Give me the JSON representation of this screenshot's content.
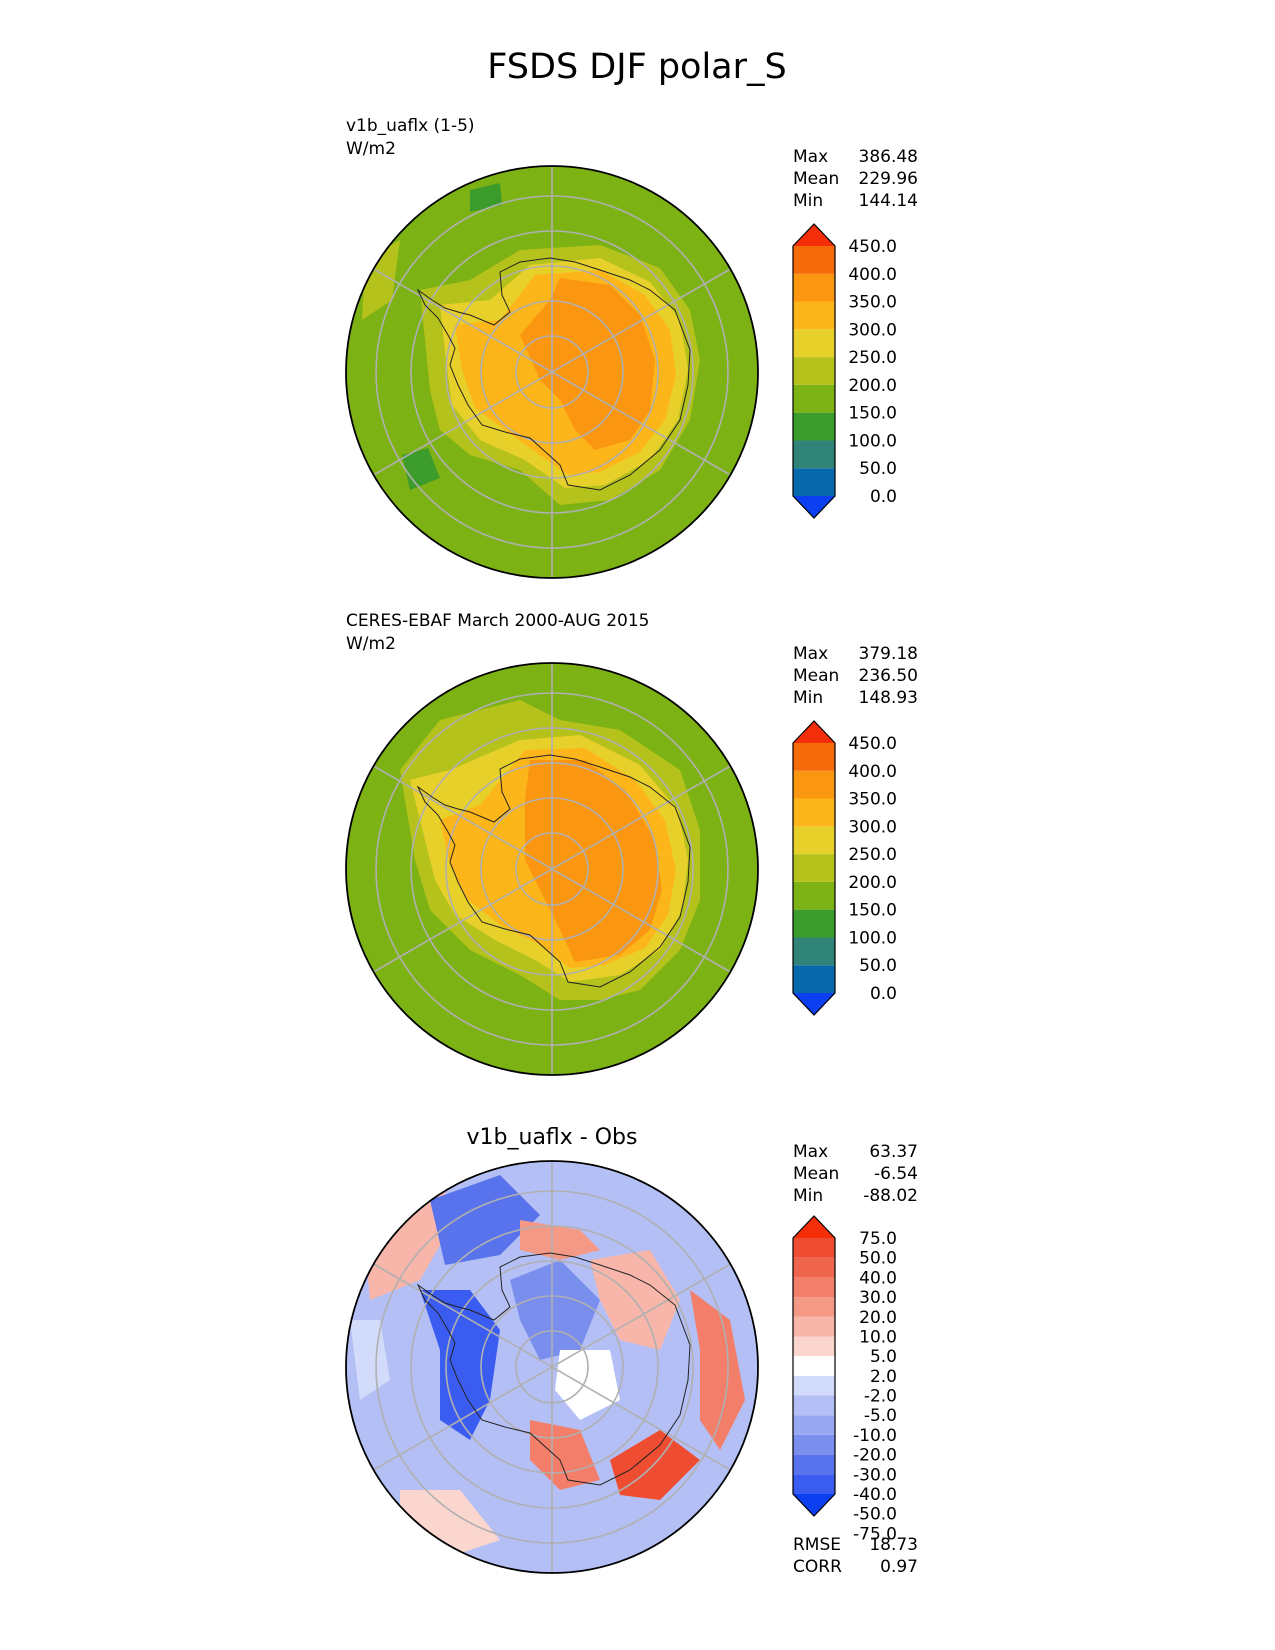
{
  "figure_title": "FSDS DJF polar_S",
  "palettes": {
    "abs": [
      "#0b3ff0",
      "#0868ac",
      "#2f8377",
      "#3c9c2b",
      "#7db214",
      "#b5c21b",
      "#e8d02b",
      "#fdb61a",
      "#fb9611",
      "#f56b0a",
      "#f52e0a"
    ],
    "diff": [
      "#0b3ff0",
      "#3b5cf0",
      "#5873ec",
      "#7a8eee",
      "#98a8f2",
      "#b4c0f5",
      "#d2dbfa",
      "#ffffff",
      "#fbd6cf",
      "#f8b6aa",
      "#f59987",
      "#f37e69",
      "#f0654d",
      "#ee4d32",
      "#f52e0a"
    ]
  },
  "panels": [
    {
      "title": "v1b_uaflx (1-5)",
      "units": "W/m2",
      "title_style": "left",
      "stats": [
        {
          "label": "Max",
          "value": "386.48"
        },
        {
          "label": "Mean",
          "value": "229.96"
        },
        {
          "label": "Min",
          "value": "144.14"
        }
      ],
      "colorbar": {
        "palette": "abs",
        "labels": [
          "450.0",
          "400.0",
          "350.0",
          "300.0",
          "250.0",
          "200.0",
          "150.0",
          "100.0",
          "50.0",
          "0.0"
        ]
      },
      "extra_stats": []
    },
    {
      "title": "CERES-EBAF March 2000-AUG 2015",
      "units": "W/m2",
      "title_style": "left",
      "stats": [
        {
          "label": "Max",
          "value": "379.18"
        },
        {
          "label": "Mean",
          "value": "236.50"
        },
        {
          "label": "Min",
          "value": "148.93"
        }
      ],
      "colorbar": {
        "palette": "abs",
        "labels": [
          "450.0",
          "400.0",
          "350.0",
          "300.0",
          "250.0",
          "200.0",
          "150.0",
          "100.0",
          "50.0",
          "0.0"
        ]
      },
      "extra_stats": []
    },
    {
      "title": "v1b_uaflx - Obs",
      "units": "",
      "title_style": "center",
      "stats": [
        {
          "label": "Max",
          "value": "63.37"
        },
        {
          "label": "Mean",
          "value": "-6.54"
        },
        {
          "label": "Min",
          "value": "-88.02"
        }
      ],
      "colorbar": {
        "palette": "diff",
        "labels": [
          "75.0",
          "50.0",
          "40.0",
          "30.0",
          "20.0",
          "10.0",
          "5.0",
          "2.0",
          "-2.0",
          "-5.0",
          "-10.0",
          "-20.0",
          "-30.0",
          "-40.0",
          "-50.0",
          "-75.0"
        ]
      },
      "extra_stats": [
        {
          "label": "RMSE",
          "value": "18.73"
        },
        {
          "label": "CORR",
          "value": "0.97"
        }
      ]
    }
  ],
  "chart_data": {
    "type": "heatmap",
    "title": "FSDS DJF polar_S",
    "projection": "south-polar-stereographic",
    "fields": [
      {
        "name": "v1b_uaflx (1-5)",
        "units": "W/m2",
        "max": 386.48,
        "mean": 229.96,
        "min": 144.14
      },
      {
        "name": "CERES-EBAF March 2000-AUG 2015",
        "units": "W/m2",
        "max": 379.18,
        "mean": 236.5,
        "min": 148.93
      },
      {
        "name": "v1b_uaflx - Obs",
        "max": 63.37,
        "mean": -6.54,
        "min": -88.02,
        "rmse": 18.73,
        "corr": 0.97
      }
    ],
    "abs_levels": [
      0,
      50,
      100,
      150,
      200,
      250,
      300,
      350,
      400,
      450
    ],
    "diff_levels": [
      -75,
      -50,
      -40,
      -30,
      -20,
      -10,
      -5,
      -2,
      2,
      5,
      10,
      20,
      30,
      40,
      50,
      75
    ],
    "grid": true
  }
}
